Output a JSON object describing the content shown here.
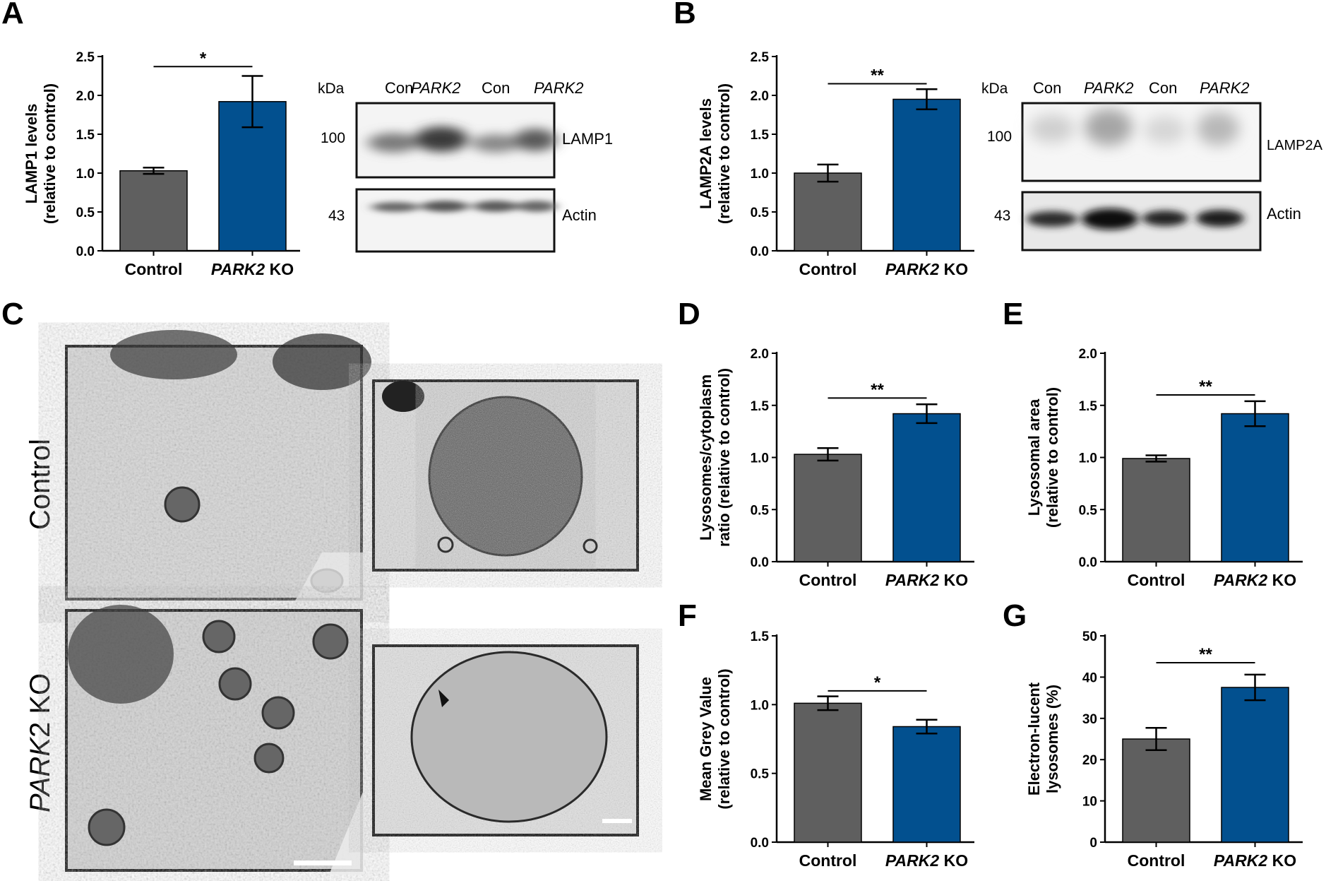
{
  "panels": {
    "A": "A",
    "B": "B",
    "C": "C",
    "D": "D",
    "E": "E",
    "F": "F",
    "G": "G"
  },
  "colors": {
    "control": "#5f5f5f",
    "ko": "#02508f",
    "frame": "#111111"
  },
  "chart_data": [
    {
      "id": "A",
      "type": "bar",
      "categories": [
        "Control",
        "PARK2 KO"
      ],
      "values": [
        1.03,
        1.92
      ],
      "errors": [
        0.04,
        0.33
      ],
      "ylabel": [
        "LAMP1 levels",
        "(relative to control)"
      ],
      "ylim": [
        0,
        2.5
      ],
      "yticks": [
        0.0,
        0.5,
        1.0,
        1.5,
        2.0,
        2.5
      ],
      "tickFmt": 1,
      "sig": "*",
      "sigY": 2.37
    },
    {
      "id": "B",
      "type": "bar",
      "categories": [
        "Control",
        "PARK2 KO"
      ],
      "values": [
        1.0,
        1.95
      ],
      "errors": [
        0.11,
        0.13
      ],
      "ylabel": [
        "LAMP2A levels",
        "(relative to control)"
      ],
      "ylim": [
        0,
        2.5
      ],
      "yticks": [
        0.0,
        0.5,
        1.0,
        1.5,
        2.0,
        2.5
      ],
      "tickFmt": 1,
      "sig": "**",
      "sigY": 2.15
    },
    {
      "id": "D",
      "type": "bar",
      "categories": [
        "Control",
        "PARK2 KO"
      ],
      "values": [
        1.03,
        1.42
      ],
      "errors": [
        0.06,
        0.09
      ],
      "ylabel": [
        "Lysosomes/cytoplasm",
        "ratio (relative to control)"
      ],
      "ylim": [
        0,
        2.0
      ],
      "yticks": [
        0.0,
        0.5,
        1.0,
        1.5,
        2.0
      ],
      "tickFmt": 1,
      "sig": "**",
      "sigY": 1.57
    },
    {
      "id": "E",
      "type": "bar",
      "categories": [
        "Control",
        "PARK2 KO"
      ],
      "values": [
        0.99,
        1.42
      ],
      "errors": [
        0.03,
        0.12
      ],
      "ylabel": [
        "Lysosomal area",
        "(relative to control)"
      ],
      "ylim": [
        0,
        2.0
      ],
      "yticks": [
        0.0,
        0.5,
        1.0,
        1.5,
        2.0
      ],
      "tickFmt": 1,
      "sig": "**",
      "sigY": 1.6
    },
    {
      "id": "F",
      "type": "bar",
      "categories": [
        "Control",
        "PARK2 KO"
      ],
      "values": [
        1.01,
        0.84
      ],
      "errors": [
        0.05,
        0.05
      ],
      "ylabel": [
        "Mean Grey Value",
        "(relative to control)"
      ],
      "ylim": [
        0,
        1.5
      ],
      "yticks": [
        0.0,
        0.5,
        1.0,
        1.5
      ],
      "tickFmt": 1,
      "sig": "*",
      "sigY": 1.1
    },
    {
      "id": "G",
      "type": "bar",
      "categories": [
        "Control",
        "PARK2 KO"
      ],
      "values": [
        25,
        37.5
      ],
      "errors": [
        2.7,
        3.1
      ],
      "ylabel": [
        "Electron-lucent",
        "lysosomes (%)"
      ],
      "ylim": [
        0,
        50
      ],
      "yticks": [
        0,
        10,
        20,
        30,
        40,
        50
      ],
      "tickFmt": 0,
      "sig": "**",
      "sigY": 43.5
    }
  ],
  "blots": [
    {
      "id": "A",
      "kda_label": "kDa",
      "lanes": [
        "Con",
        "PARK2",
        "Con",
        "PARK2"
      ],
      "lane_italic": [
        false,
        true,
        false,
        true
      ],
      "bands": [
        {
          "kda": "100",
          "name": "LAMP1"
        },
        {
          "kda": "43",
          "name": "Actin"
        }
      ]
    },
    {
      "id": "B",
      "kda_label": "kDa",
      "lanes": [
        "Con",
        "PARK2",
        "Con",
        "PARK2"
      ],
      "lane_italic": [
        false,
        true,
        false,
        true
      ],
      "bands": [
        {
          "kda": "100",
          "name": "LAMP2A"
        },
        {
          "kda": "43",
          "name": "Actin"
        }
      ]
    }
  ],
  "em": {
    "row_labels": [
      "Control",
      "PARK2 KO"
    ]
  }
}
